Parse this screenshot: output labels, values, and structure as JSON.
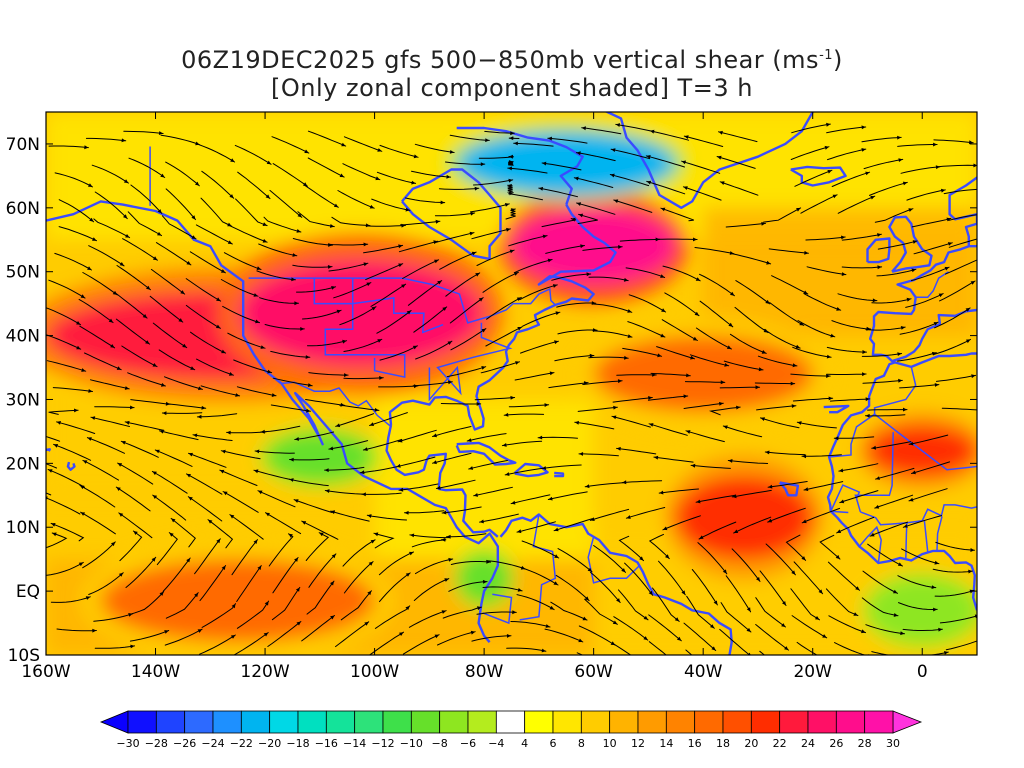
{
  "title": {
    "line1": "06Z19DEC2025 gfs 500−850mb vertical shear (ms",
    "line1_exp": "-1",
    "line1_end": ")",
    "line2": "[Only zonal component shaded] T=3 h"
  },
  "map": {
    "lon_range": [
      -160,
      10
    ],
    "lat_range": [
      -10,
      75
    ],
    "x_ticks": [
      "160W",
      "140W",
      "120W",
      "100W",
      "80W",
      "60W",
      "40W",
      "20W",
      "0"
    ],
    "x_tick_lons": [
      -160,
      -140,
      -120,
      -100,
      -80,
      -60,
      -40,
      -20,
      0
    ],
    "y_ticks": [
      "10S",
      "EQ",
      "10N",
      "20N",
      "30N",
      "40N",
      "50N",
      "60N",
      "70N"
    ],
    "y_tick_lats": [
      -10,
      0,
      10,
      20,
      30,
      40,
      50,
      60,
      70
    ],
    "coast_color": "#3a4bff",
    "streamline_color": "#000000"
  },
  "colorbar": {
    "labels": [
      "-30",
      "-28",
      "-26",
      "-24",
      "-22",
      "-20",
      "-18",
      "-16",
      "-14",
      "-12",
      "-10",
      "-8",
      "-6",
      "-4",
      "4",
      "6",
      "8",
      "10",
      "12",
      "14",
      "16",
      "18",
      "20",
      "22",
      "24",
      "26",
      "28",
      "30"
    ],
    "colors": [
      "#1010ff",
      "#1f44ff",
      "#2d6aff",
      "#1e90ff",
      "#00b4f0",
      "#00d8e6",
      "#00e0c0",
      "#14e39a",
      "#2de27a",
      "#3ee04a",
      "#66e02a",
      "#8ee620",
      "#b4ec1e",
      "#ffffff",
      "#ffff00",
      "#ffe600",
      "#ffcc00",
      "#ffb300",
      "#ff9b00",
      "#ff8300",
      "#ff6a00",
      "#ff5000",
      "#ff2d00",
      "#ff1a3c",
      "#ff1066",
      "#ff0d8c",
      "#ff11a8"
    ],
    "end_low": "#0a00ff",
    "end_high": "#ff33dd"
  },
  "features": {
    "jets": [
      {
        "region": "north-pacific-jet",
        "lon": [
          -160,
          -95
        ],
        "lat": [
          33,
          47
        ],
        "value": 24
      },
      {
        "region": "us-jet",
        "lon": [
          -125,
          -80
        ],
        "lat": [
          35,
          52
        ],
        "value": 26
      },
      {
        "region": "canada-jet",
        "lon": [
          -75,
          -45
        ],
        "lat": [
          48,
          60
        ],
        "value": 28
      },
      {
        "region": "atlantic-jet",
        "lon": [
          -60,
          -20
        ],
        "lat": [
          28,
          40
        ],
        "value": 18
      },
      {
        "region": "tropical-atlantic-jet",
        "lon": [
          -45,
          -20
        ],
        "lat": [
          5,
          18
        ],
        "value": 22
      },
      {
        "region": "south-pacific-jet",
        "lon": [
          -150,
          -100
        ],
        "lat": [
          -8,
          5
        ],
        "value": 18
      },
      {
        "region": "sahara-jet",
        "lon": [
          -10,
          10
        ],
        "lat": [
          18,
          26
        ],
        "value": 22
      }
    ],
    "easterly": [
      {
        "region": "labrador-easterly",
        "lon": [
          -85,
          -45
        ],
        "lat": [
          62,
          72
        ],
        "value": -20
      },
      {
        "region": "mexico-easterly",
        "lon": [
          -120,
          -100
        ],
        "lat": [
          17,
          25
        ],
        "value": -8
      },
      {
        "region": "colombia-easterly",
        "lon": [
          -85,
          -75
        ],
        "lat": [
          -2,
          6
        ],
        "value": -8
      },
      {
        "region": "africa-easterly",
        "lon": [
          -10,
          10
        ],
        "lat": [
          -8,
          2
        ],
        "value": -6
      }
    ]
  }
}
